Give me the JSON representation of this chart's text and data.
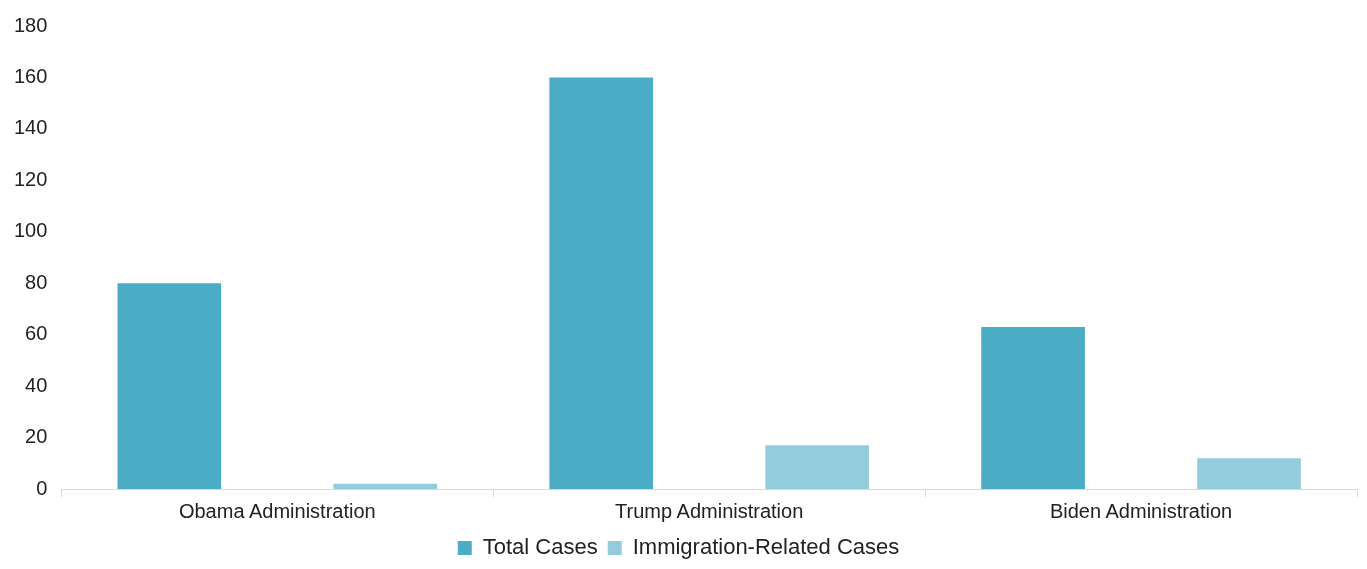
{
  "chart_data": {
    "type": "bar",
    "categories": [
      "Obama Administration",
      "Trump Administration",
      "Biden Administration"
    ],
    "series": [
      {
        "name": "Total Cases",
        "color": "#4bacc6",
        "values": [
          80,
          160,
          63
        ]
      },
      {
        "name": "Immigration-Related Cases",
        "color": "#93cddd",
        "values": [
          2,
          17,
          12
        ]
      }
    ],
    "ylim": [
      0,
      180
    ],
    "yticks": [
      0,
      20,
      40,
      60,
      80,
      100,
      120,
      140,
      160,
      180
    ],
    "grid": false,
    "legend": "bottom"
  }
}
